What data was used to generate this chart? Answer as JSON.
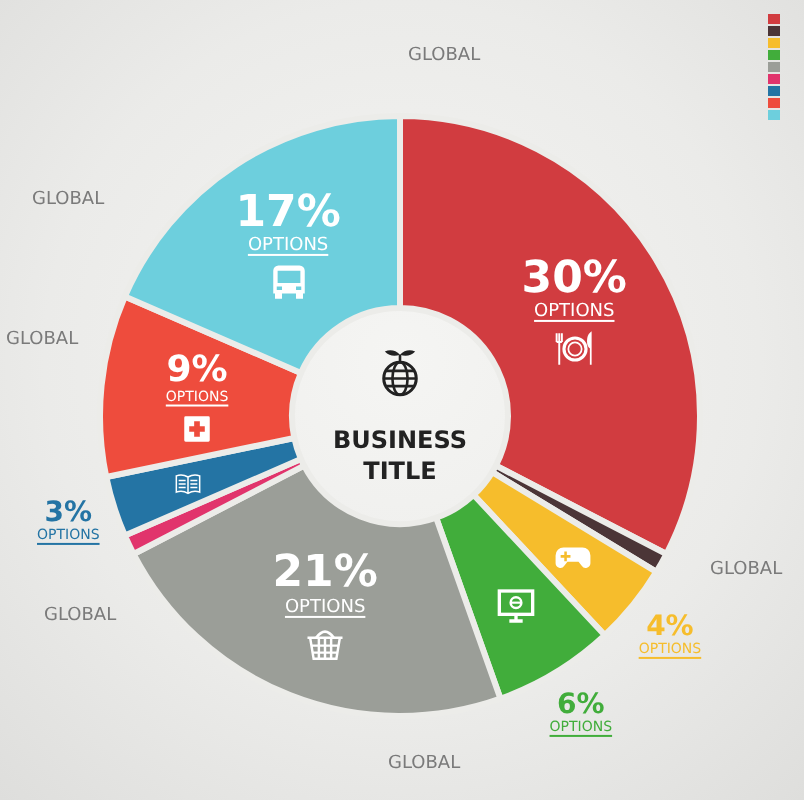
{
  "chart_data": {
    "type": "donut",
    "title": "BUSINESS\nTITLE",
    "categories": [
      null,
      null,
      null,
      null,
      null,
      null,
      null,
      null,
      null
    ],
    "values": [
      30,
      1,
      4,
      6,
      21,
      1,
      3,
      9,
      17
    ],
    "colors": [
      "#d13c40",
      "#4b3537",
      "#f6bd2c",
      "#41ad3b",
      "#9b9e98",
      "#e1346c",
      "#2474a4",
      "#ee4c3d",
      "#6dcfdd"
    ],
    "value_labels": [
      "30%\nOPTIONS",
      null,
      "4%\nOPTIONS",
      "6%\nOPTIONS",
      "21%\nOPTIONS",
      null,
      "3%\nOPTIONS",
      "9%\nOPTIONS",
      "17%\nOPTIONS"
    ],
    "annotations": [
      "GLOBAL",
      "GLOBAL",
      "GLOBAL",
      "GLOBAL",
      "GLOBAL",
      "GLOBAL"
    ]
  }
}
